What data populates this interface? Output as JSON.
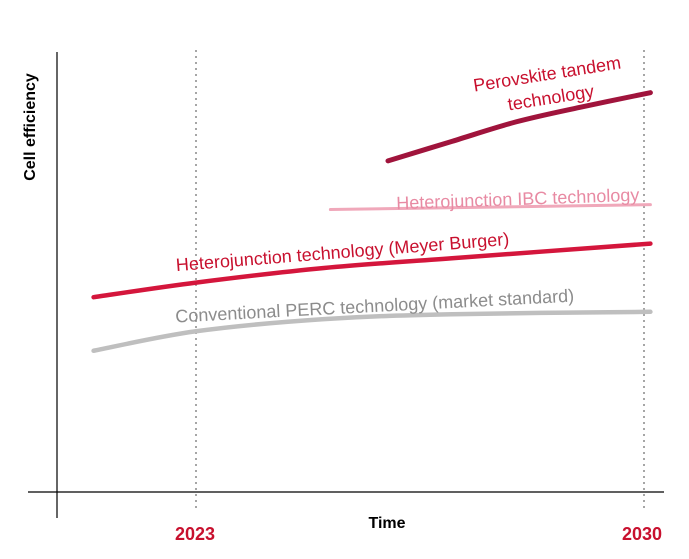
{
  "chart_data": {
    "type": "line",
    "title": "",
    "xlabel": "Time",
    "ylabel": "Cell efficiency",
    "x_axis_markers": [
      {
        "label": "2023",
        "x": 2023
      },
      {
        "label": "2030",
        "x": 2030
      }
    ],
    "marker_color": "#c8102e",
    "series": [
      {
        "name": "Perovskite tandem technology",
        "label_lines": [
          "Perovskite tandem",
          "technology"
        ],
        "color": "#a0143c",
        "x": [
          2026,
          2027,
          2028,
          2029,
          2030.1
        ],
        "y": [
          0.68,
          0.72,
          0.76,
          0.79,
          0.82
        ]
      },
      {
        "name": "Heterojunction IBC technology",
        "label_lines": [
          "Heterojunction IBC technology"
        ],
        "color": "#f0a8ba",
        "x": [
          2025.1,
          2030.1
        ],
        "y": [
          0.58,
          0.59
        ]
      },
      {
        "name": "Heterojunction technology (Meyer Burger)",
        "label_lines": [
          "Heterojunction technology (Meyer Burger)"
        ],
        "color": "#d4163c",
        "x": [
          2021.4,
          2023,
          2025,
          2027,
          2030.1
        ],
        "y": [
          0.4,
          0.43,
          0.46,
          0.48,
          0.51
        ]
      },
      {
        "name": "Conventional PERC technology (market standard)",
        "label_lines": [
          "Conventional PERC technology (market standard)"
        ],
        "color": "#bfbfbf",
        "x": [
          2021.4,
          2023,
          2025,
          2027,
          2030.1
        ],
        "y": [
          0.29,
          0.33,
          0.355,
          0.365,
          0.37
        ]
      }
    ]
  }
}
